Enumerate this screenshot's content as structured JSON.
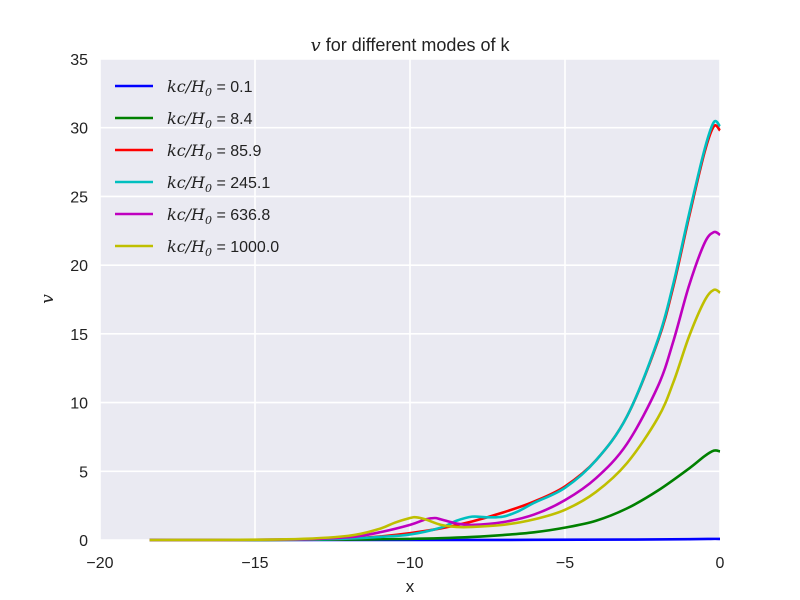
{
  "chart_data": {
    "type": "line",
    "title_math": "v",
    "title_text": " for different modes of k",
    "xlabel": "x",
    "ylabel": "v",
    "xlim": [
      -20,
      0
    ],
    "ylim": [
      0,
      35
    ],
    "x_ticks": [
      -20,
      -15,
      -10,
      -5,
      0
    ],
    "x_tick_labels": [
      "−20",
      "−15",
      "−10",
      "−5",
      "0"
    ],
    "y_ticks": [
      0,
      5,
      10,
      15,
      20,
      25,
      30,
      35
    ],
    "y_tick_labels": [
      "0",
      "5",
      "10",
      "15",
      "20",
      "25",
      "30",
      "35"
    ],
    "grid": true,
    "background": "#eaeaf2",
    "legend_position": "upper-left",
    "legend_math": "kc/H0",
    "series": [
      {
        "name": "0.1",
        "color": "#0000ff",
        "points": [
          [
            -18.4,
            0.0
          ],
          [
            -10,
            0.0
          ],
          [
            -6,
            0.01
          ],
          [
            -3,
            0.03
          ],
          [
            -1,
            0.06
          ],
          [
            -0.3,
            0.08
          ],
          [
            0,
            0.08
          ]
        ]
      },
      {
        "name": "8.4",
        "color": "#008000",
        "points": [
          [
            -18.4,
            0.0
          ],
          [
            -16,
            0.0
          ],
          [
            -14,
            0.01
          ],
          [
            -12,
            0.03
          ],
          [
            -10,
            0.08
          ],
          [
            -9,
            0.13
          ],
          [
            -8,
            0.22
          ],
          [
            -7,
            0.36
          ],
          [
            -6,
            0.56
          ],
          [
            -5,
            0.9
          ],
          [
            -4,
            1.4
          ],
          [
            -3,
            2.3
          ],
          [
            -2,
            3.6
          ],
          [
            -1,
            5.2
          ],
          [
            -0.5,
            6.1
          ],
          [
            -0.2,
            6.5
          ],
          [
            0,
            6.45
          ]
        ]
      },
      {
        "name": "85.9",
        "color": "#ff0000",
        "points": [
          [
            -18.4,
            0.0
          ],
          [
            -14,
            0.02
          ],
          [
            -12,
            0.1
          ],
          [
            -11,
            0.25
          ],
          [
            -10,
            0.5
          ],
          [
            -9,
            0.85
          ],
          [
            -8,
            1.35
          ],
          [
            -7,
            2.0
          ],
          [
            -6,
            2.8
          ],
          [
            -5,
            3.9
          ],
          [
            -4,
            5.8
          ],
          [
            -3,
            9.0
          ],
          [
            -2,
            14.5
          ],
          [
            -1.5,
            18.5
          ],
          [
            -1,
            23.5
          ],
          [
            -0.5,
            28.2
          ],
          [
            -0.2,
            30.1
          ],
          [
            0,
            29.8
          ]
        ]
      },
      {
        "name": "245.1",
        "color": "#00bfbf",
        "points": [
          [
            -18.4,
            0.0
          ],
          [
            -14,
            0.02
          ],
          [
            -12,
            0.1
          ],
          [
            -11,
            0.22
          ],
          [
            -10,
            0.4
          ],
          [
            -9,
            0.9
          ],
          [
            -8.5,
            1.4
          ],
          [
            -8,
            1.7
          ],
          [
            -7.5,
            1.65
          ],
          [
            -7,
            1.7
          ],
          [
            -6.5,
            2.1
          ],
          [
            -6,
            2.7
          ],
          [
            -5,
            3.8
          ],
          [
            -4,
            5.8
          ],
          [
            -3,
            9.0
          ],
          [
            -2,
            14.6
          ],
          [
            -1.5,
            18.7
          ],
          [
            -1,
            23.7
          ],
          [
            -0.5,
            28.4
          ],
          [
            -0.2,
            30.4
          ],
          [
            0,
            30.1
          ]
        ]
      },
      {
        "name": "636.8",
        "color": "#bf00bf",
        "points": [
          [
            -18.4,
            0.0
          ],
          [
            -14,
            0.03
          ],
          [
            -12,
            0.2
          ],
          [
            -11,
            0.55
          ],
          [
            -10,
            1.1
          ],
          [
            -9.5,
            1.5
          ],
          [
            -9.2,
            1.6
          ],
          [
            -9,
            1.5
          ],
          [
            -8.5,
            1.2
          ],
          [
            -8,
            1.1
          ],
          [
            -7,
            1.3
          ],
          [
            -6,
            1.85
          ],
          [
            -5,
            2.9
          ],
          [
            -4,
            4.5
          ],
          [
            -3,
            7.0
          ],
          [
            -2,
            11.2
          ],
          [
            -1.5,
            14.5
          ],
          [
            -1,
            18.5
          ],
          [
            -0.5,
            21.6
          ],
          [
            -0.2,
            22.4
          ],
          [
            0,
            22.2
          ]
        ]
      },
      {
        "name": "1000.0",
        "color": "#bfbf00",
        "points": [
          [
            -18.4,
            0.0
          ],
          [
            -14,
            0.05
          ],
          [
            -12,
            0.3
          ],
          [
            -11,
            0.8
          ],
          [
            -10.5,
            1.25
          ],
          [
            -10,
            1.6
          ],
          [
            -9.8,
            1.65
          ],
          [
            -9.5,
            1.5
          ],
          [
            -9,
            1.1
          ],
          [
            -8.5,
            0.95
          ],
          [
            -8,
            0.95
          ],
          [
            -7,
            1.1
          ],
          [
            -6,
            1.5
          ],
          [
            -5,
            2.2
          ],
          [
            -4,
            3.5
          ],
          [
            -3,
            5.6
          ],
          [
            -2,
            8.9
          ],
          [
            -1.5,
            11.5
          ],
          [
            -1,
            14.8
          ],
          [
            -0.5,
            17.4
          ],
          [
            -0.2,
            18.2
          ],
          [
            0,
            18.0
          ]
        ]
      }
    ]
  }
}
